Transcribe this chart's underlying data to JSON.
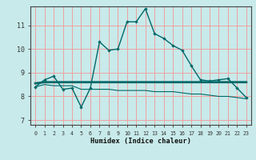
{
  "title": "",
  "xlabel": "Humidex (Indice chaleur)",
  "background_color": "#c8eaea",
  "grid_color": "#f0a0a0",
  "line_color": "#006868",
  "x_ticks": [
    0,
    1,
    2,
    3,
    4,
    5,
    6,
    7,
    8,
    9,
    10,
    11,
    12,
    13,
    14,
    15,
    16,
    17,
    18,
    19,
    20,
    21,
    22,
    23
  ],
  "y_ticks": [
    7,
    8,
    9,
    10,
    11
  ],
  "ylim": [
    6.8,
    11.8
  ],
  "xlim": [
    -0.5,
    23.5
  ],
  "curve1_x": [
    0,
    1,
    2,
    3,
    4,
    5,
    6,
    7,
    8,
    9,
    10,
    11,
    12,
    13,
    14,
    15,
    16,
    17,
    18,
    19,
    20,
    21,
    22,
    23
  ],
  "curve1_y": [
    8.4,
    8.7,
    8.85,
    8.3,
    8.35,
    7.55,
    8.35,
    10.3,
    9.95,
    10.0,
    11.15,
    11.15,
    11.7,
    10.65,
    10.45,
    10.15,
    9.95,
    9.3,
    8.7,
    8.65,
    8.7,
    8.75,
    8.35,
    7.95
  ],
  "curve2_x": [
    0,
    1,
    2,
    3,
    4,
    5,
    6,
    7,
    8,
    9,
    10,
    11,
    12,
    13,
    14,
    15,
    16,
    17,
    18,
    19,
    20,
    21,
    22,
    23
  ],
  "curve2_y": [
    8.55,
    8.6,
    8.6,
    8.6,
    8.6,
    8.6,
    8.6,
    8.6,
    8.6,
    8.6,
    8.6,
    8.6,
    8.6,
    8.6,
    8.6,
    8.6,
    8.6,
    8.6,
    8.6,
    8.6,
    8.6,
    8.6,
    8.6,
    8.6
  ],
  "curve3_x": [
    0,
    1,
    2,
    3,
    4,
    5,
    6,
    7,
    8,
    9,
    10,
    11,
    12,
    13,
    14,
    15,
    16,
    17,
    18,
    19,
    20,
    21,
    22,
    23
  ],
  "curve3_y": [
    8.4,
    8.5,
    8.45,
    8.45,
    8.45,
    8.3,
    8.3,
    8.3,
    8.3,
    8.25,
    8.25,
    8.25,
    8.25,
    8.2,
    8.2,
    8.2,
    8.15,
    8.1,
    8.1,
    8.05,
    8.0,
    8.0,
    7.95,
    7.9
  ]
}
